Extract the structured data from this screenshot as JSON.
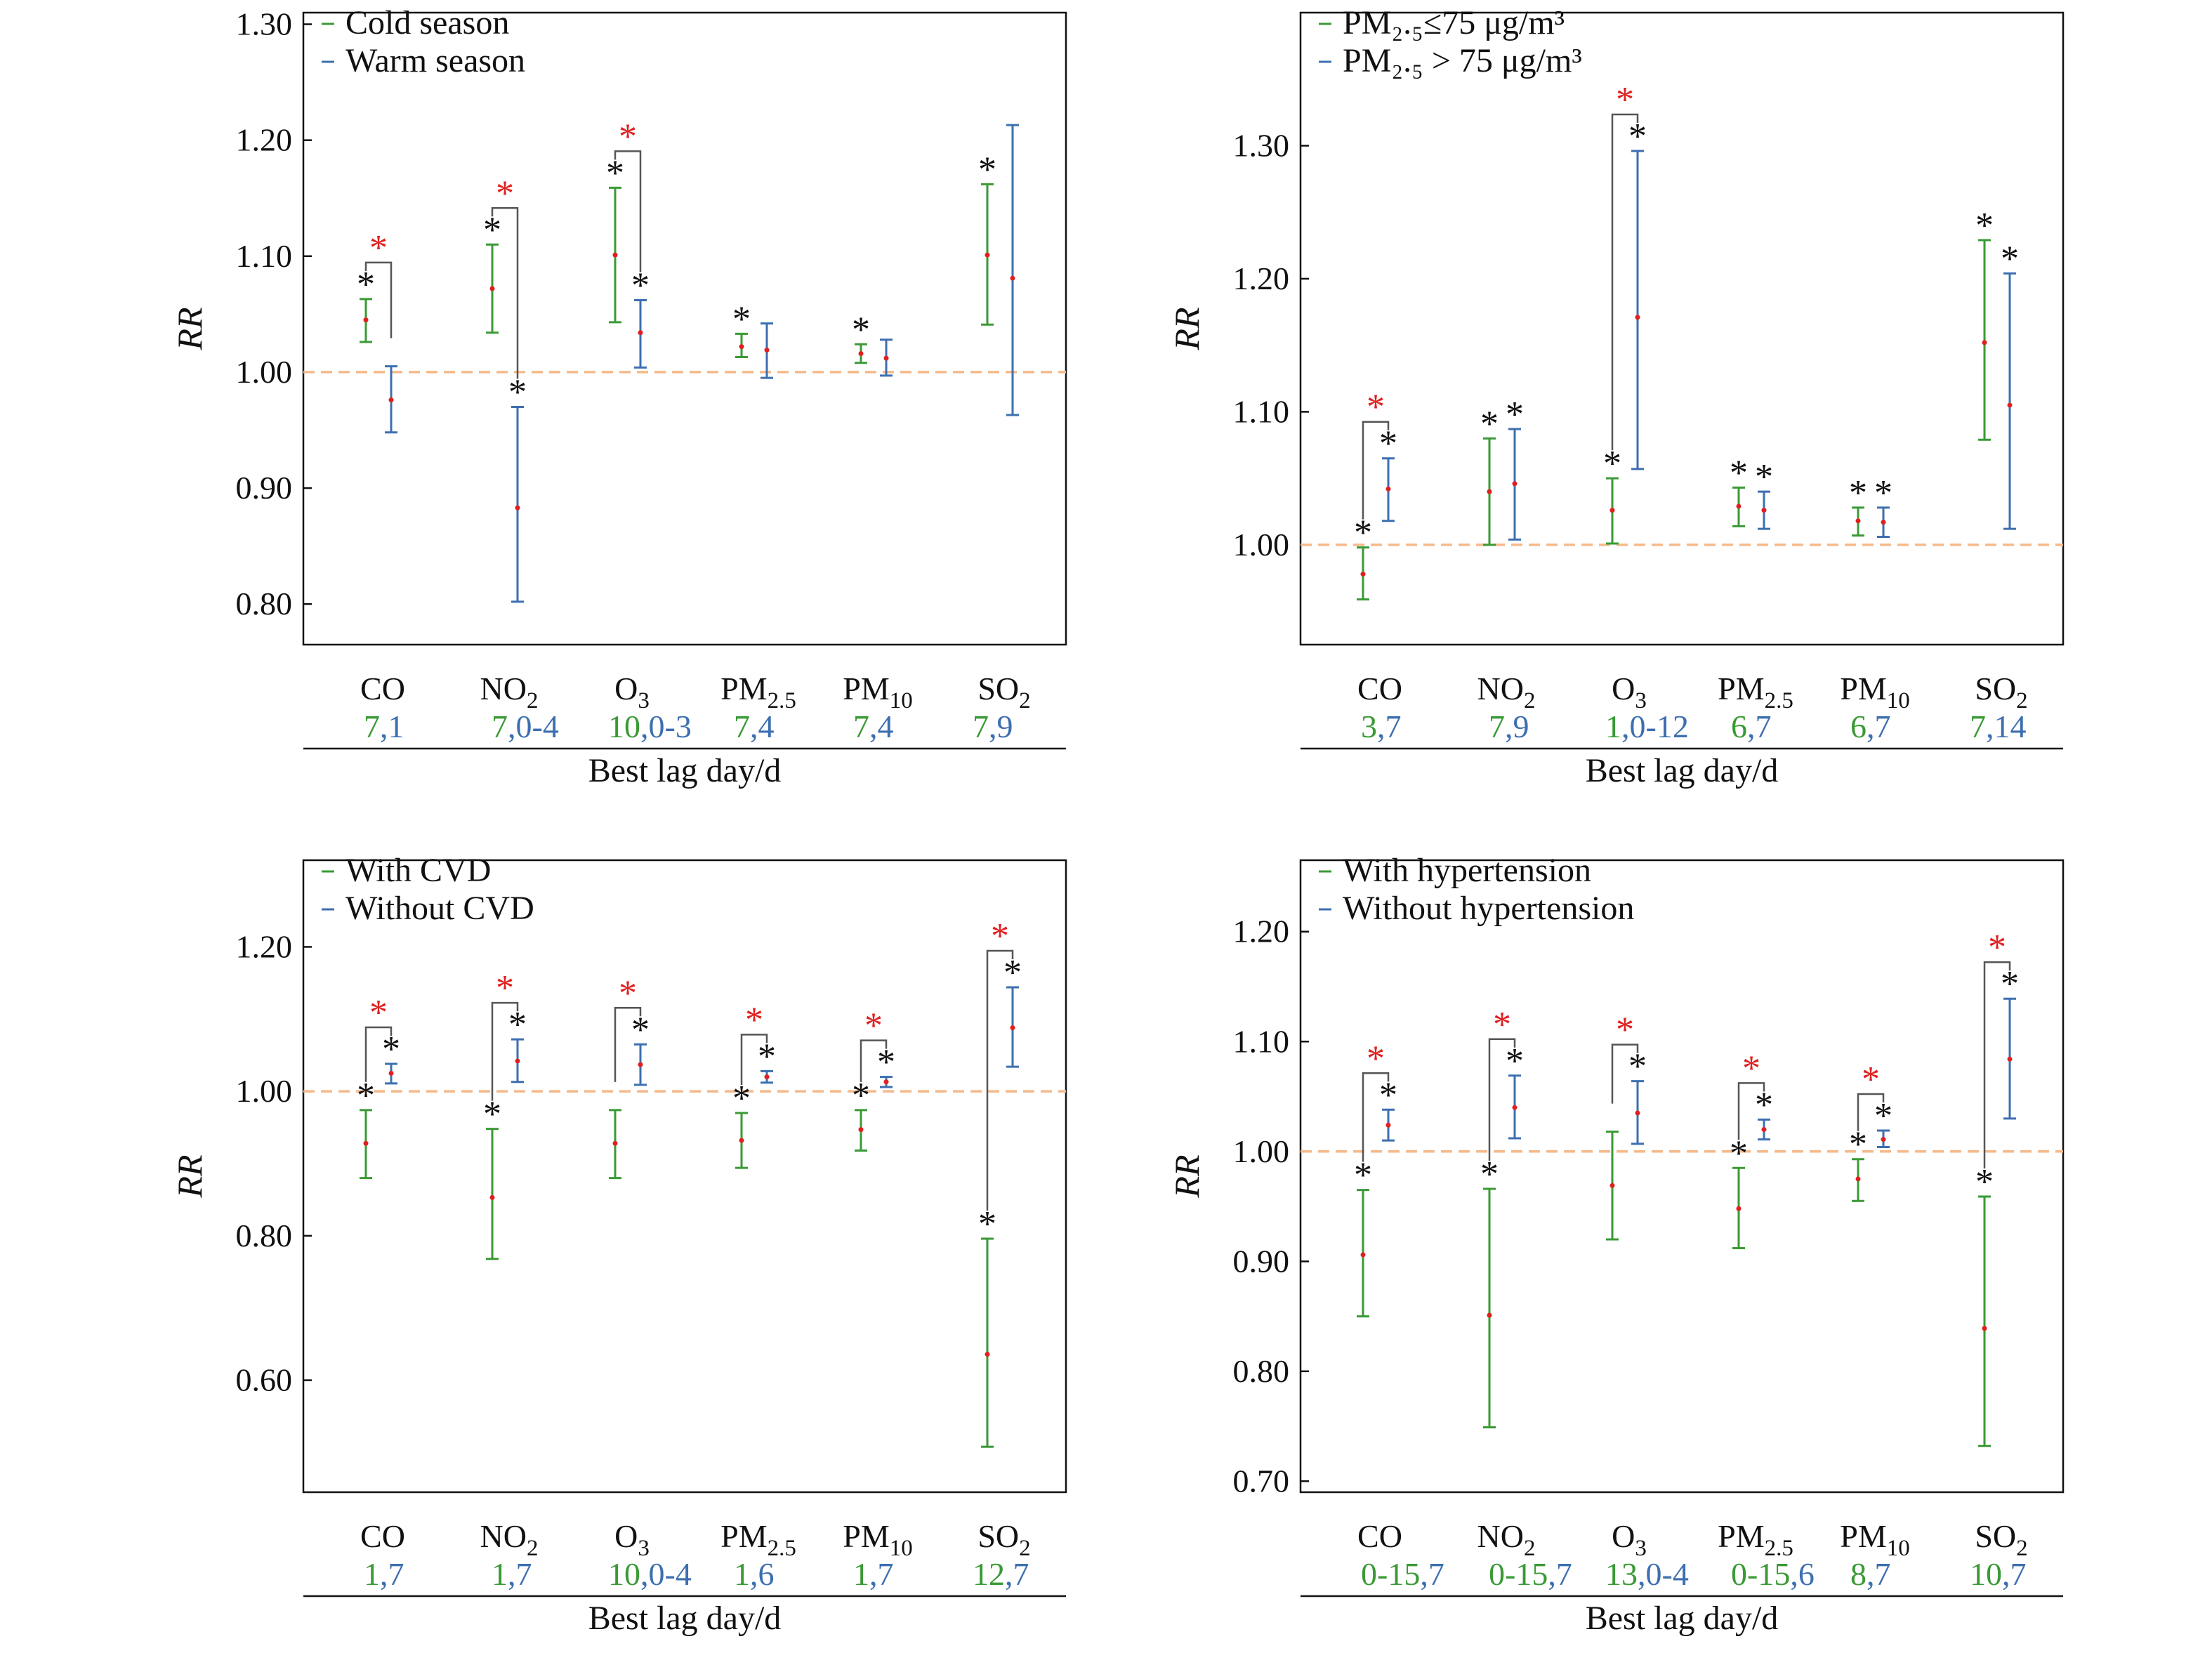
{
  "colors": {
    "green": "#3a9a35",
    "blue": "#3d6fb0",
    "red": "#e02020",
    "dash": "#f5b98a",
    "black": "#111111"
  },
  "pollutants": [
    {
      "base": "CO",
      "sub": ""
    },
    {
      "base": "NO",
      "sub": "2"
    },
    {
      "base": "O",
      "sub": "3"
    },
    {
      "base": "PM",
      "sub": "2.5"
    },
    {
      "base": "PM",
      "sub": "10"
    },
    {
      "base": "SO",
      "sub": "2"
    }
  ],
  "ylabel": "RR",
  "xlabel": "Best lag day/d",
  "chart_data": [
    {
      "type": "errorbar",
      "legend": [
        "Cold season",
        "Warm season"
      ],
      "legend_pos": "top-left",
      "ylim": [
        0.765,
        1.31
      ],
      "yticks": [
        "0.80",
        "0.90",
        "1.00",
        "1.10",
        "1.20",
        "1.30"
      ],
      "reference_line": 1.0,
      "lags": [
        [
          "7",
          "1"
        ],
        [
          "7",
          "0-4"
        ],
        [
          "10",
          "0-3"
        ],
        [
          "7",
          "4"
        ],
        [
          "7",
          "4"
        ],
        [
          "7",
          "9"
        ]
      ],
      "series": [
        {
          "name": "Cold season",
          "color": "green",
          "est": [
            1.045,
            1.072,
            1.101,
            1.022,
            1.016,
            1.101
          ],
          "lower": [
            1.026,
            1.034,
            1.043,
            1.013,
            1.008,
            1.041
          ],
          "upper": [
            1.063,
            1.11,
            1.159,
            1.033,
            1.024,
            1.162
          ],
          "star": [
            true,
            true,
            true,
            true,
            true,
            true
          ]
        },
        {
          "name": "Warm season",
          "color": "blue",
          "est": [
            0.976,
            0.883,
            1.034,
            1.019,
            1.012,
            1.081
          ],
          "lower": [
            0.948,
            0.802,
            1.004,
            0.995,
            0.997,
            0.963
          ],
          "upper": [
            1.005,
            0.97,
            1.062,
            1.042,
            1.028,
            1.213
          ],
          "star": [
            false,
            true,
            true,
            false,
            false,
            false
          ]
        }
      ],
      "diff": [
        true,
        true,
        true,
        false,
        false,
        false
      ]
    },
    {
      "type": "errorbar",
      "legend": [
        "PM₂.₅≤75 μg/m³",
        "PM₂.₅ > 75 μg/m³"
      ],
      "legend_pos": "top-left",
      "ylim": [
        0.925,
        1.4
      ],
      "yticks": [
        "1.00",
        "1.10",
        "1.20",
        "1.30"
      ],
      "reference_line": 1.0,
      "lags": [
        [
          "3",
          "7"
        ],
        [
          "7",
          "9"
        ],
        [
          "1",
          "0-12"
        ],
        [
          "6",
          "7"
        ],
        [
          "6",
          "7"
        ],
        [
          "7",
          "14"
        ]
      ],
      "series": [
        {
          "name": "PM₂.₅≤75 μg/m³",
          "color": "green",
          "est": [
            0.978,
            1.04,
            1.026,
            1.029,
            1.018,
            1.152
          ],
          "lower": [
            0.959,
            1.0,
            1.001,
            1.014,
            1.007,
            1.079
          ],
          "upper": [
            0.998,
            1.08,
            1.05,
            1.043,
            1.028,
            1.229
          ],
          "star": [
            true,
            true,
            true,
            true,
            true,
            true
          ]
        },
        {
          "name": "PM₂.₅ > 75 μg/m³",
          "color": "blue",
          "est": [
            1.042,
            1.046,
            1.171,
            1.026,
            1.017,
            1.105
          ],
          "lower": [
            1.018,
            1.004,
            1.057,
            1.012,
            1.006,
            1.012
          ],
          "upper": [
            1.065,
            1.087,
            1.296,
            1.04,
            1.028,
            1.204
          ],
          "star": [
            true,
            true,
            true,
            true,
            true,
            true
          ]
        }
      ],
      "diff": [
        true,
        false,
        true,
        false,
        false,
        false
      ]
    },
    {
      "type": "errorbar",
      "legend": [
        "With CVD",
        "Without CVD"
      ],
      "legend_pos": "top-left",
      "ylim": [
        0.445,
        1.32
      ],
      "yticks": [
        "0.60",
        "0.80",
        "1.00",
        "1.20"
      ],
      "reference_line": 1.0,
      "lags": [
        [
          "1",
          "7"
        ],
        [
          "1",
          "7"
        ],
        [
          "10",
          "0-4"
        ],
        [
          "1",
          "6"
        ],
        [
          "1",
          "7"
        ],
        [
          "12",
          "7"
        ]
      ],
      "series": [
        {
          "name": "With CVD",
          "color": "green",
          "est": [
            0.928,
            0.853,
            0.928,
            0.932,
            0.947,
            0.636
          ],
          "lower": [
            0.88,
            0.768,
            0.88,
            0.894,
            0.918,
            0.508
          ],
          "upper": [
            0.974,
            0.948,
            0.974,
            0.97,
            0.974,
            0.796
          ],
          "star": [
            true,
            true,
            false,
            true,
            true,
            true
          ]
        },
        {
          "name": "Without CVD",
          "color": "blue",
          "est": [
            1.025,
            1.042,
            1.037,
            1.02,
            1.013,
            1.088
          ],
          "lower": [
            1.011,
            1.013,
            1.009,
            1.012,
            1.006,
            1.034
          ],
          "upper": [
            1.038,
            1.072,
            1.065,
            1.028,
            1.02,
            1.144
          ],
          "star": [
            true,
            true,
            true,
            true,
            true,
            true
          ]
        }
      ],
      "diff": [
        true,
        true,
        true,
        true,
        true,
        true
      ]
    },
    {
      "type": "errorbar",
      "legend": [
        "With hypertension",
        "Without hypertension"
      ],
      "legend_pos": "top-left",
      "ylim": [
        0.69,
        1.265
      ],
      "yticks": [
        "0.70",
        "0.80",
        "0.90",
        "1.00",
        "1.10",
        "1.20"
      ],
      "reference_line": 1.0,
      "lags": [
        [
          "0-15",
          "7"
        ],
        [
          "0-15",
          "7"
        ],
        [
          "13",
          "0-4"
        ],
        [
          "0-15",
          "6"
        ],
        [
          "8",
          "7"
        ],
        [
          "10",
          "7"
        ]
      ],
      "series": [
        {
          "name": "With hypertension",
          "color": "green",
          "est": [
            0.906,
            0.851,
            0.969,
            0.948,
            0.975,
            0.839
          ],
          "lower": [
            0.85,
            0.749,
            0.92,
            0.912,
            0.955,
            0.732
          ],
          "upper": [
            0.965,
            0.966,
            1.018,
            0.985,
            0.993,
            0.959
          ],
          "star": [
            true,
            true,
            false,
            true,
            true,
            true
          ]
        },
        {
          "name": "Without hypertension",
          "color": "blue",
          "est": [
            1.024,
            1.04,
            1.035,
            1.02,
            1.011,
            1.084
          ],
          "lower": [
            1.01,
            1.012,
            1.007,
            1.011,
            1.004,
            1.03
          ],
          "upper": [
            1.038,
            1.069,
            1.064,
            1.029,
            1.019,
            1.139
          ],
          "star": [
            true,
            true,
            true,
            true,
            true,
            true
          ]
        }
      ],
      "diff": [
        true,
        true,
        true,
        true,
        true,
        true
      ]
    }
  ]
}
